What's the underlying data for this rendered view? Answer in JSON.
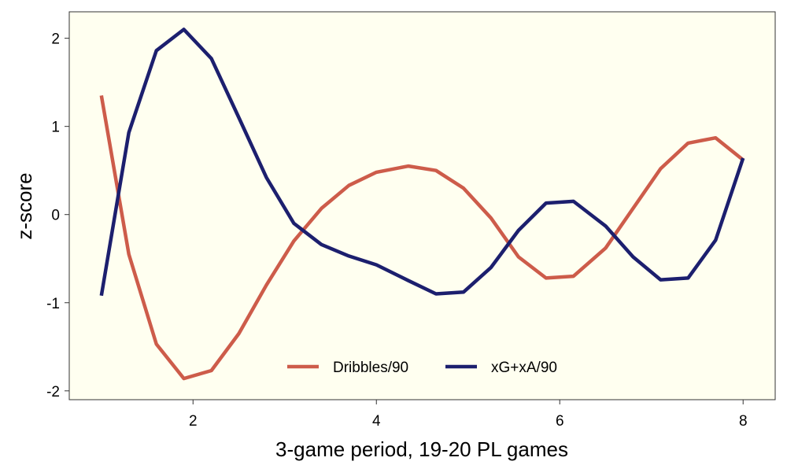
{
  "chart_data": {
    "type": "line",
    "title": "",
    "xlabel": "3-game period, 19-20 PL games",
    "ylabel": "z-score",
    "xlim": [
      0.65,
      8.35
    ],
    "ylim": [
      -2.1,
      2.3
    ],
    "xticks": [
      2,
      4,
      6,
      8
    ],
    "yticks": [
      -2,
      -1,
      0,
      1,
      2
    ],
    "grid": false,
    "legend_position": "bottom-center, inside plot",
    "background_color": "#fffff0",
    "series": [
      {
        "name": "Dribbles/90",
        "color": "#cd5c4a",
        "x": [
          1,
          1.3,
          1.6,
          1.9,
          2.2,
          2.5,
          2.8,
          3.1,
          3.4,
          3.7,
          4.0,
          4.35,
          4.65,
          4.95,
          5.25,
          5.55,
          5.85,
          6.15,
          6.5,
          6.8,
          7.1,
          7.4,
          7.7,
          8.0
        ],
        "y": [
          1.35,
          -0.45,
          -1.47,
          -1.86,
          -1.77,
          -1.35,
          -0.8,
          -0.3,
          0.07,
          0.33,
          0.48,
          0.55,
          0.5,
          0.3,
          -0.04,
          -0.48,
          -0.72,
          -0.7,
          -0.38,
          0.07,
          0.52,
          0.81,
          0.87,
          0.62
        ]
      },
      {
        "name": "xG+xA/90",
        "color": "#1c1f6e",
        "x": [
          1,
          1.3,
          1.6,
          1.9,
          2.2,
          2.5,
          2.8,
          3.1,
          3.4,
          3.7,
          4.0,
          4.35,
          4.65,
          4.95,
          5.25,
          5.55,
          5.85,
          6.15,
          6.5,
          6.8,
          7.1,
          7.4,
          7.7,
          8.0
        ],
        "y": [
          -0.92,
          0.93,
          1.86,
          2.1,
          1.77,
          1.1,
          0.42,
          -0.1,
          -0.34,
          -0.47,
          -0.57,
          -0.75,
          -0.9,
          -0.88,
          -0.6,
          -0.18,
          0.13,
          0.15,
          -0.13,
          -0.48,
          -0.74,
          -0.72,
          -0.29,
          0.64
        ]
      }
    ]
  }
}
